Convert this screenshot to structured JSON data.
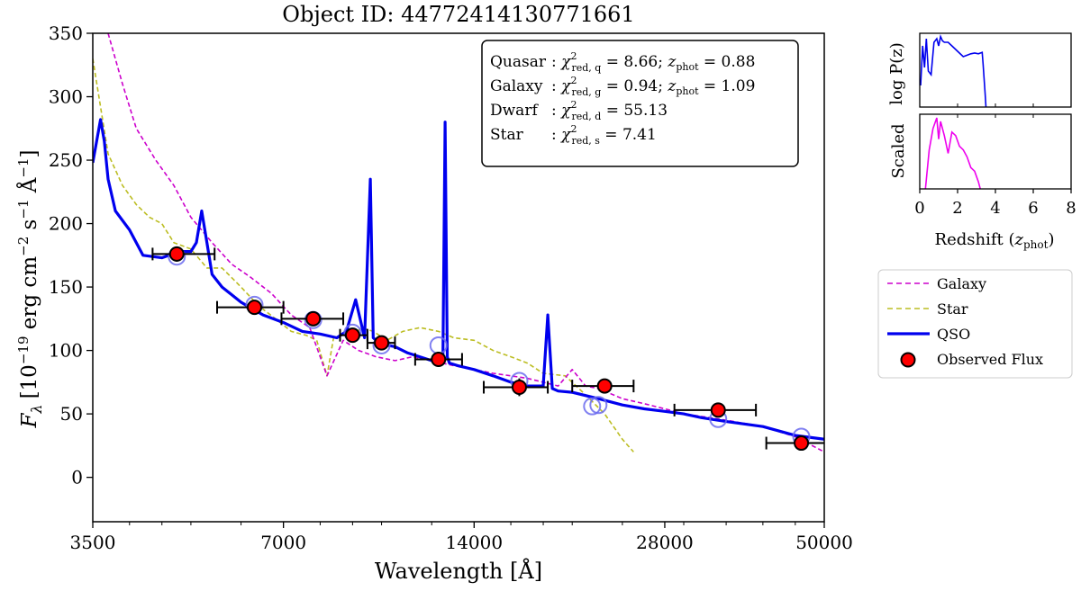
{
  "chart_data": {
    "type": "line",
    "title": "Object ID: 44772414130771661",
    "xlabel": "Wavelength [Å]",
    "ylabel": "F_λ [10^-19 erg cm^-2 s^-1 Å^-1]",
    "ylabel_parts": {
      "F": "F",
      "lambda": "λ",
      "rest": "[10",
      "e1": "−19",
      "unit1": " erg cm",
      "e2": "−2",
      "unit2": " s",
      "e3": "−1",
      "unit3": " Å",
      "e4": "−1",
      "close": "]"
    },
    "xscale": "log",
    "xlim": [
      3500,
      50000
    ],
    "ylim": [
      -35,
      350
    ],
    "xticks": [
      {
        "value": 3500,
        "label": "3500"
      },
      {
        "value": 7000,
        "label": "7000"
      },
      {
        "value": 14000,
        "label": "14000"
      },
      {
        "value": 28000,
        "label": "28000"
      },
      {
        "value": 50000,
        "label": "50000"
      }
    ],
    "yticks": [
      {
        "value": 0,
        "label": "0"
      },
      {
        "value": 50,
        "label": "50"
      },
      {
        "value": 100,
        "label": "100"
      },
      {
        "value": 150,
        "label": "150"
      },
      {
        "value": 200,
        "label": "200"
      },
      {
        "value": 250,
        "label": "250"
      },
      {
        "value": 300,
        "label": "300"
      },
      {
        "value": 350,
        "label": "350"
      }
    ],
    "series": [
      {
        "name": "Star",
        "color": "#bcbd22",
        "style": "dashed",
        "x": [
          3500,
          3700,
          3900,
          4100,
          4300,
          4500,
          4700,
          5000,
          5300,
          5600,
          6000,
          6400,
          6800,
          7200,
          7600,
          7900,
          8200,
          8400,
          8700,
          9000,
          9300,
          9700,
          10200,
          10800,
          11500,
          12300,
          13000,
          14000,
          15000,
          16000,
          17000,
          18000,
          19500,
          21000,
          22500,
          24000,
          25000
        ],
        "y": [
          330,
          255,
          230,
          215,
          205,
          200,
          185,
          180,
          165,
          165,
          150,
          135,
          125,
          115,
          112,
          108,
          80,
          110,
          112,
          112,
          118,
          115,
          108,
          115,
          118,
          115,
          110,
          108,
          100,
          95,
          90,
          82,
          80,
          65,
          50,
          30,
          20
        ]
      },
      {
        "name": "Galaxy",
        "color": "#cc00cc",
        "style": "dashed",
        "x": [
          3700,
          3900,
          4100,
          4400,
          4700,
          5000,
          5400,
          5800,
          6200,
          6700,
          7200,
          7700,
          8200,
          8700,
          9200,
          9800,
          10500,
          11200,
          12000,
          13000,
          14000,
          15000,
          16000,
          17000,
          18000,
          19000,
          20000,
          21000,
          22000,
          24000,
          26000,
          28000,
          30000,
          33000,
          36000,
          40000,
          45000,
          50000
        ],
        "y": [
          350,
          310,
          275,
          250,
          230,
          205,
          185,
          168,
          158,
          145,
          128,
          118,
          80,
          108,
          100,
          95,
          92,
          95,
          92,
          88,
          85,
          82,
          80,
          78,
          75,
          72,
          85,
          72,
          70,
          62,
          58,
          54,
          50,
          47,
          44,
          40,
          32,
          20
        ]
      },
      {
        "name": "QSO",
        "color": "#0000ee",
        "style": "solid",
        "x": [
          3500,
          3600,
          3650,
          3700,
          3800,
          4000,
          4200,
          4500,
          4800,
          5000,
          5100,
          5200,
          5300,
          5400,
          5600,
          6000,
          6500,
          7000,
          7500,
          8000,
          8500,
          8800,
          9100,
          9400,
          9600,
          9700,
          9800,
          10000,
          10500,
          11000,
          12000,
          12500,
          12600,
          12700,
          12800,
          13200,
          14000,
          15000,
          16000,
          17000,
          18000,
          18300,
          18600,
          19000,
          20000,
          22000,
          24000,
          26000,
          28000,
          30000,
          32000,
          35000,
          40000,
          45000,
          50000
        ],
        "y": [
          248,
          282,
          265,
          235,
          210,
          195,
          175,
          173,
          178,
          178,
          185,
          210,
          185,
          160,
          150,
          138,
          128,
          122,
          115,
          113,
          110,
          115,
          140,
          110,
          235,
          110,
          108,
          105,
          103,
          98,
          92,
          95,
          280,
          95,
          90,
          88,
          85,
          80,
          75,
          72,
          72,
          128,
          70,
          68,
          67,
          62,
          57,
          54,
          52,
          50,
          47,
          44,
          40,
          33,
          30
        ]
      }
    ],
    "observed_flux": [
      {
        "x": 4750,
        "y": 176,
        "xerr_low": 4350,
        "xerr_high": 5450,
        "yerr": 6
      },
      {
        "x": 6300,
        "y": 134,
        "xerr_low": 5500,
        "xerr_high": 7000,
        "yerr": 5
      },
      {
        "x": 7800,
        "y": 125,
        "xerr_low": 6950,
        "xerr_high": 8700,
        "yerr": 4
      },
      {
        "x": 9000,
        "y": 112,
        "xerr_low": 8600,
        "xerr_high": 9500,
        "yerr": 5
      },
      {
        "x": 10000,
        "y": 106,
        "xerr_low": 9500,
        "xerr_high": 10500,
        "yerr": 5
      },
      {
        "x": 12300,
        "y": 93,
        "xerr_low": 11300,
        "xerr_high": 13400,
        "yerr": 6
      },
      {
        "x": 16500,
        "y": 71,
        "xerr_low": 14500,
        "xerr_high": 18300,
        "yerr": 7
      },
      {
        "x": 22500,
        "y": 72,
        "xerr_low": 20000,
        "xerr_high": 25000,
        "yerr": 4
      },
      {
        "x": 34000,
        "y": 53,
        "xerr_low": 29000,
        "xerr_high": 39000,
        "yerr": 4
      },
      {
        "x": 46000,
        "y": 27,
        "xerr_low": 40500,
        "xerr_high": 51000,
        "yerr": 4
      }
    ],
    "model_flux": [
      {
        "x": 4750,
        "y": 174
      },
      {
        "x": 6300,
        "y": 136
      },
      {
        "x": 7800,
        "y": 124
      },
      {
        "x": 9000,
        "y": 114
      },
      {
        "x": 10000,
        "y": 104
      },
      {
        "x": 12300,
        "y": 104
      },
      {
        "x": 16500,
        "y": 76
      },
      {
        "x": 21500,
        "y": 56
      },
      {
        "x": 22000,
        "y": 57
      },
      {
        "x": 34000,
        "y": 46
      },
      {
        "x": 46000,
        "y": 32
      }
    ],
    "legend": {
      "position": "right",
      "items": [
        {
          "label": "Galaxy",
          "kind": "dashed",
          "color": "#cc00cc"
        },
        {
          "label": "Star",
          "kind": "dashed",
          "color": "#bcbd22"
        },
        {
          "label": "QSO",
          "kind": "solid",
          "color": "#0000ee"
        },
        {
          "label": "Observed Flux",
          "kind": "marker",
          "color": "#ff0000"
        }
      ]
    },
    "stats_box": {
      "position": "top-right",
      "rows": [
        {
          "name": "Quasar",
          "sub": "red, q",
          "chi2": "8.66",
          "zphot": "0.88"
        },
        {
          "name": "Galaxy",
          "sub": "red, g",
          "chi2": "0.94",
          "zphot": "1.09"
        },
        {
          "name": "Dwarf",
          "sub": "red, d",
          "chi2": "55.13",
          "zphot": null
        },
        {
          "name": "Star",
          "sub": "red, s",
          "chi2": "7.41",
          "zphot": null
        }
      ],
      "chi_symbol": "χ",
      "z_symbol": "z",
      "z_sub": "phot",
      "separator": ":",
      "equals": "=",
      "semicolon": ";"
    }
  },
  "pz_inset": {
    "xlabel": "Redshift (z_phot)",
    "xlabel_parts": {
      "text": "Redshift (",
      "z": "z",
      "sub": "phot",
      "close": ")"
    },
    "xlim": [
      0,
      8
    ],
    "xticks": [
      {
        "value": 0,
        "label": "0"
      },
      {
        "value": 2,
        "label": "2"
      },
      {
        "value": 4,
        "label": "4"
      },
      {
        "value": 6,
        "label": "6"
      },
      {
        "value": 8,
        "label": "8"
      }
    ],
    "top_panel": {
      "ylabel": "log P(z)",
      "color": "#0000ee",
      "x": [
        0.05,
        0.15,
        0.25,
        0.35,
        0.45,
        0.6,
        0.75,
        0.9,
        1.0,
        1.1,
        1.2,
        1.3,
        1.5,
        1.7,
        1.9,
        2.1,
        2.3,
        2.5,
        2.7,
        2.9,
        3.1,
        3.3,
        3.35,
        3.4,
        3.45,
        3.5
      ],
      "y": [
        0.3,
        0.85,
        0.55,
        0.95,
        0.5,
        0.45,
        0.9,
        0.95,
        0.85,
        0.98,
        0.92,
        0.9,
        0.9,
        0.85,
        0.8,
        0.75,
        0.7,
        0.72,
        0.74,
        0.75,
        0.74,
        0.76,
        0.6,
        0.4,
        0.2,
        0.0
      ]
    },
    "bottom_panel": {
      "ylabel": "Scaled",
      "color": "#ee00ee",
      "x": [
        0.3,
        0.5,
        0.7,
        0.9,
        1.0,
        1.1,
        1.3,
        1.5,
        1.7,
        1.9,
        2.1,
        2.3,
        2.5,
        2.7,
        2.9,
        3.1,
        3.2
      ],
      "y": [
        0.0,
        0.55,
        0.85,
        1.0,
        0.7,
        0.95,
        0.75,
        0.5,
        0.8,
        0.75,
        0.6,
        0.55,
        0.45,
        0.3,
        0.25,
        0.1,
        0.0
      ]
    }
  }
}
